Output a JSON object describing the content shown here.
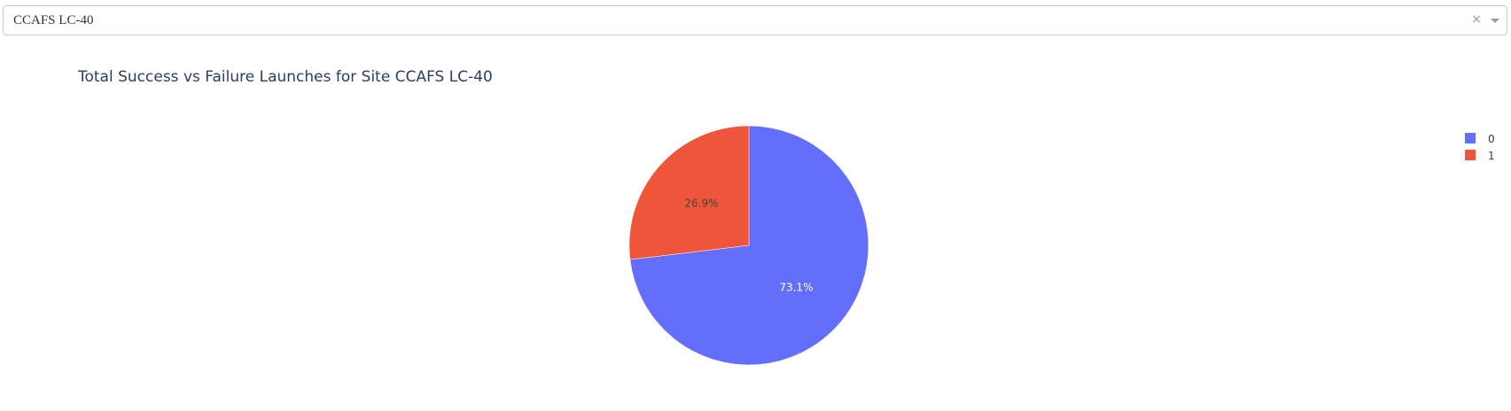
{
  "site_dropdown": {
    "selected_value": "CCAFS LC-40",
    "clear_symbol": "×",
    "clear_icon": "close-icon",
    "toggle_icon": "chevron-down-icon"
  },
  "chart_data": {
    "type": "pie",
    "title": "Total Success vs Failure Launches for Site CCAFS LC-40",
    "categories": [
      "0",
      "1"
    ],
    "values": [
      73.1,
      26.9
    ],
    "value_labels": [
      "73.1%",
      "26.9%"
    ],
    "colors": [
      "#636efa",
      "#ef553b"
    ],
    "label_colors": [
      "#ffffff",
      "#444444"
    ],
    "legend": {
      "entries": [
        "0",
        "1"
      ],
      "position": "top-right"
    }
  }
}
